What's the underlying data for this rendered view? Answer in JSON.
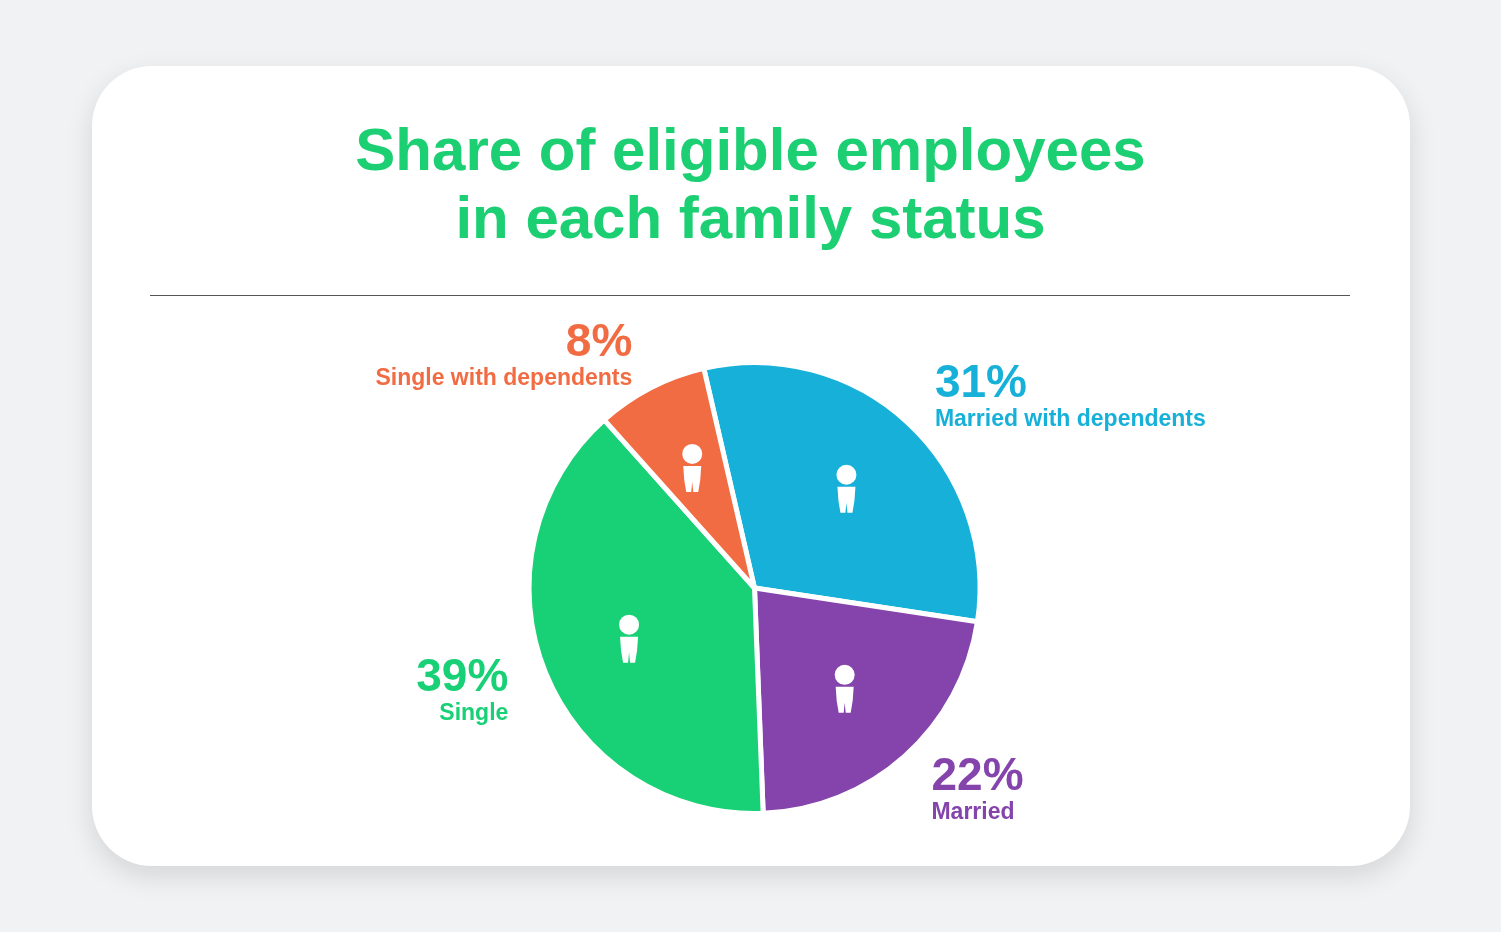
{
  "chart_data": {
    "type": "pie",
    "title": "Share of eligible employees in each family status",
    "categories": [
      "Married with dependents",
      "Married",
      "Single",
      "Single with dependents"
    ],
    "values": [
      31,
      22,
      39,
      8
    ],
    "value_labels": [
      "31%",
      "22%",
      "39%",
      "8%"
    ],
    "colors": [
      "#17b0d8",
      "#8444ab",
      "#18d075",
      "#f26c43"
    ],
    "data_labels": true
  }
}
